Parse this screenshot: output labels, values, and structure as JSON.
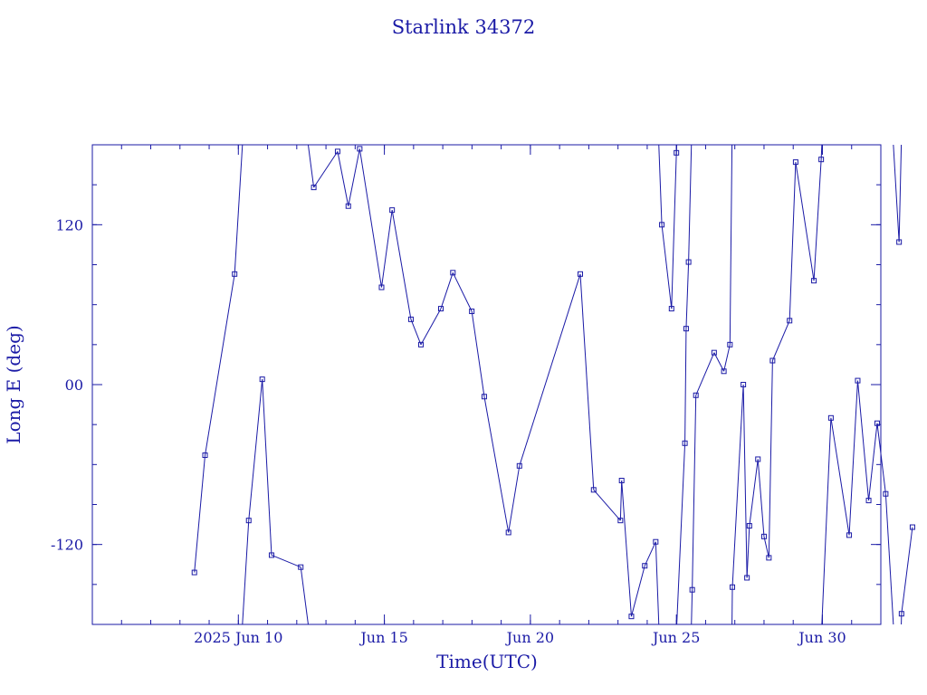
{
  "chart_data": {
    "type": "scatter",
    "title": "Starlink 34372",
    "xlabel": "Time(UTC)",
    "ylabel": "Long E (deg)",
    "color": "#1a1aa6",
    "xlim": [
      "2025-06-05T00:00",
      "2025-07-02T00:00"
    ],
    "ylim": [
      -180,
      180
    ],
    "x_ticks": [
      {
        "date": "2025-06-10",
        "label": "2025 Jun 10"
      },
      {
        "date": "2025-06-15",
        "label": "Jun 15"
      },
      {
        "date": "2025-06-20",
        "label": "Jun 20"
      },
      {
        "date": "2025-06-25",
        "label": "Jun 25"
      },
      {
        "date": "2025-06-30",
        "label": "Jun 30"
      }
    ],
    "y_ticks": [
      {
        "value": 120,
        "label": "120"
      },
      {
        "value": 0,
        "label": "00"
      },
      {
        "value": -120,
        "label": "-120"
      }
    ],
    "line_style": "lines with square markers, wrapping at ±180°",
    "grid": false,
    "points": [
      {
        "x": "2025-06-08T11:52",
        "y": -141
      },
      {
        "x": "2025-06-08T20:38",
        "y": -53
      },
      {
        "x": "2025-06-09T20:56",
        "y": 83
      },
      {
        "x": "2025-06-10T08:31",
        "y": -102
      },
      {
        "x": "2025-06-10T19:38",
        "y": 4
      },
      {
        "x": "2025-06-11T03:17",
        "y": -128
      },
      {
        "x": "2025-06-12T03:17",
        "y": -137
      },
      {
        "x": "2025-06-12T13:58",
        "y": 148
      },
      {
        "x": "2025-06-13T09:35",
        "y": 175
      },
      {
        "x": "2025-06-13T18:22",
        "y": 134
      },
      {
        "x": "2025-06-14T03:44",
        "y": 177
      },
      {
        "x": "2025-06-14T21:41",
        "y": 73
      },
      {
        "x": "2025-06-15T06:22",
        "y": 131
      },
      {
        "x": "2025-06-15T21:50",
        "y": 49
      },
      {
        "x": "2025-06-16T06:02",
        "y": 30
      },
      {
        "x": "2025-06-16T22:26",
        "y": 57
      },
      {
        "x": "2025-06-17T08:19",
        "y": 84
      },
      {
        "x": "2025-06-17T23:50",
        "y": 55
      },
      {
        "x": "2025-06-18T10:06",
        "y": -9
      },
      {
        "x": "2025-06-19T06:00",
        "y": -111
      },
      {
        "x": "2025-06-19T15:00",
        "y": -61
      },
      {
        "x": "2025-06-21T17:00",
        "y": 83
      },
      {
        "x": "2025-06-22T04:00",
        "y": -79
      },
      {
        "x": "2025-06-23T02:00",
        "y": -102
      },
      {
        "x": "2025-06-23T03:00",
        "y": -72
      },
      {
        "x": "2025-06-23T11:00",
        "y": -174
      },
      {
        "x": "2025-06-23T22:00",
        "y": -136
      },
      {
        "x": "2025-06-24T07:00",
        "y": -118
      },
      {
        "x": "2025-06-24T12:00",
        "y": 120
      },
      {
        "x": "2025-06-24T20:00",
        "y": 57
      },
      {
        "x": "2025-06-25T00:00",
        "y": 174
      },
      {
        "x": "2025-06-25T07:00",
        "y": -44
      },
      {
        "x": "2025-06-25T08:00",
        "y": 42
      },
      {
        "x": "2025-06-25T10:00",
        "y": 92
      },
      {
        "x": "2025-06-25T13:00",
        "y": -154
      },
      {
        "x": "2025-06-25T16:00",
        "y": -8
      },
      {
        "x": "2025-06-26T07:00",
        "y": 24
      },
      {
        "x": "2025-06-26T15:00",
        "y": 10
      },
      {
        "x": "2025-06-26T20:00",
        "y": 30
      },
      {
        "x": "2025-06-26T22:00",
        "y": -152
      },
      {
        "x": "2025-06-27T07:00",
        "y": 0
      },
      {
        "x": "2025-06-27T10:00",
        "y": -145
      },
      {
        "x": "2025-06-27T12:00",
        "y": -106
      },
      {
        "x": "2025-06-27T19:00",
        "y": -56
      },
      {
        "x": "2025-06-28T00:00",
        "y": -114
      },
      {
        "x": "2025-06-28T04:00",
        "y": -130
      },
      {
        "x": "2025-06-28T07:00",
        "y": 18
      },
      {
        "x": "2025-06-28T21:00",
        "y": 48
      },
      {
        "x": "2025-06-29T02:00",
        "y": 167
      },
      {
        "x": "2025-06-29T17:00",
        "y": 78
      },
      {
        "x": "2025-06-29T23:00",
        "y": 169
      },
      {
        "x": "2025-06-30T07:00",
        "y": -25
      },
      {
        "x": "2025-06-30T22:00",
        "y": -113
      },
      {
        "x": "2025-07-01T05:00",
        "y": 3
      },
      {
        "x": "2025-07-01T14:00",
        "y": -87
      },
      {
        "x": "2025-07-01T21:00",
        "y": -29
      },
      {
        "x": "2025-07-02T04:00",
        "y": -82
      },
      {
        "x": "2025-07-02T15:00",
        "y": 107
      },
      {
        "x": "2025-07-02T17:00",
        "y": -172
      },
      {
        "x": "2025-07-03T02:00",
        "y": -107
      }
    ]
  }
}
